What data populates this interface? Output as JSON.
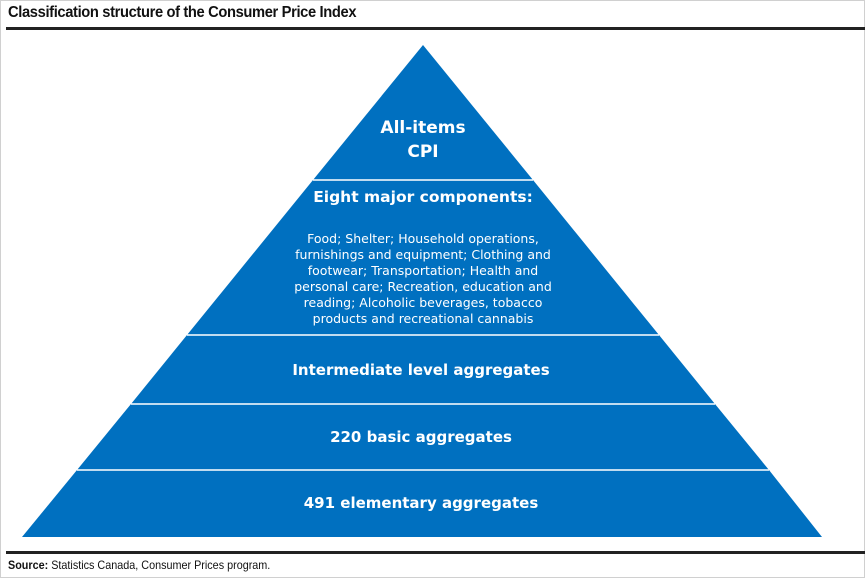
{
  "title": "Classification structure of the Consumer Price Index",
  "levels": {
    "apex": {
      "line1": "All-items",
      "line2": "CPI"
    },
    "major": {
      "heading": "Eight major components:",
      "lines": [
        "Food; Shelter; Household operations,",
        "furnishings and equipment; Clothing and",
        "footwear; Transportation; Health and",
        "personal care; Recreation, education and",
        "reading; Alcoholic beverages, tobacco",
        "products and recreational cannabis"
      ]
    },
    "intermediate": "Intermediate level aggregates",
    "basic": "220 basic aggregates",
    "elementary": "491 elementary aggregates"
  },
  "source": {
    "label": "Source:",
    "text": " Statistics Canada, Consumer Prices program."
  },
  "colors": {
    "fill": "#0070c0"
  }
}
